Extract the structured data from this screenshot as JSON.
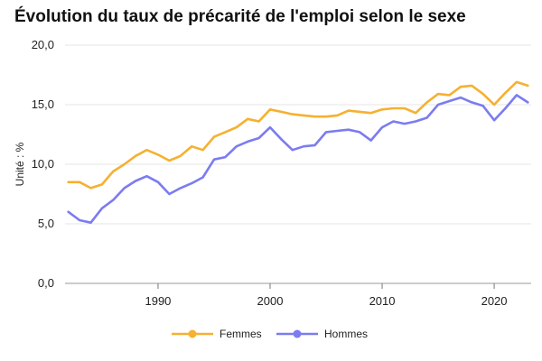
{
  "chart_data": {
    "type": "line",
    "title": "Évolution du taux de précarité de l'emploi selon le sexe",
    "ylabel": "Unité : %",
    "xlabel": "",
    "ylim": [
      0,
      20
    ],
    "xlim": [
      1981.7,
      2023.3
    ],
    "yticks": [
      "0,0",
      "5,0",
      "10,0",
      "15,0",
      "20,0"
    ],
    "ytick_values": [
      0,
      5,
      10,
      15,
      20
    ],
    "xticks": [
      "1990",
      "2000",
      "2010",
      "2020"
    ],
    "xtick_values": [
      1990,
      2000,
      2010,
      2020
    ],
    "grid": "horizontal",
    "legend_position": "bottom",
    "x": [
      1982,
      1983,
      1984,
      1985,
      1986,
      1987,
      1988,
      1989,
      1990,
      1991,
      1992,
      1993,
      1994,
      1995,
      1996,
      1997,
      1998,
      1999,
      2000,
      2001,
      2002,
      2003,
      2004,
      2005,
      2006,
      2007,
      2008,
      2009,
      2010,
      2011,
      2012,
      2013,
      2014,
      2015,
      2016,
      2017,
      2018,
      2019,
      2020,
      2021,
      2022,
      2023
    ],
    "series": [
      {
        "name": "Femmes",
        "color": "#f5b131",
        "values": [
          8.5,
          8.5,
          8.0,
          8.3,
          9.4,
          10.0,
          10.7,
          11.2,
          10.8,
          10.3,
          10.7,
          11.5,
          11.2,
          12.3,
          12.7,
          13.1,
          13.8,
          13.6,
          14.6,
          14.4,
          14.2,
          14.1,
          14.0,
          14.0,
          14.1,
          14.5,
          14.4,
          14.3,
          14.6,
          14.7,
          14.7,
          14.3,
          15.2,
          15.9,
          15.8,
          16.5,
          16.6,
          15.9,
          15.0,
          16.0,
          16.9,
          16.6
        ]
      },
      {
        "name": "Hommes",
        "color": "#7b7cf0",
        "values": [
          6.0,
          5.3,
          5.1,
          6.3,
          7.0,
          8.0,
          8.6,
          9.0,
          8.5,
          7.5,
          8.0,
          8.4,
          8.9,
          10.4,
          10.6,
          11.5,
          11.9,
          12.2,
          13.1,
          12.1,
          11.2,
          11.5,
          11.6,
          12.7,
          12.8,
          12.9,
          12.7,
          12.0,
          13.1,
          13.6,
          13.4,
          13.6,
          13.9,
          15.0,
          15.3,
          15.6,
          15.2,
          14.9,
          13.7,
          14.7,
          15.8,
          15.2
        ]
      }
    ]
  }
}
